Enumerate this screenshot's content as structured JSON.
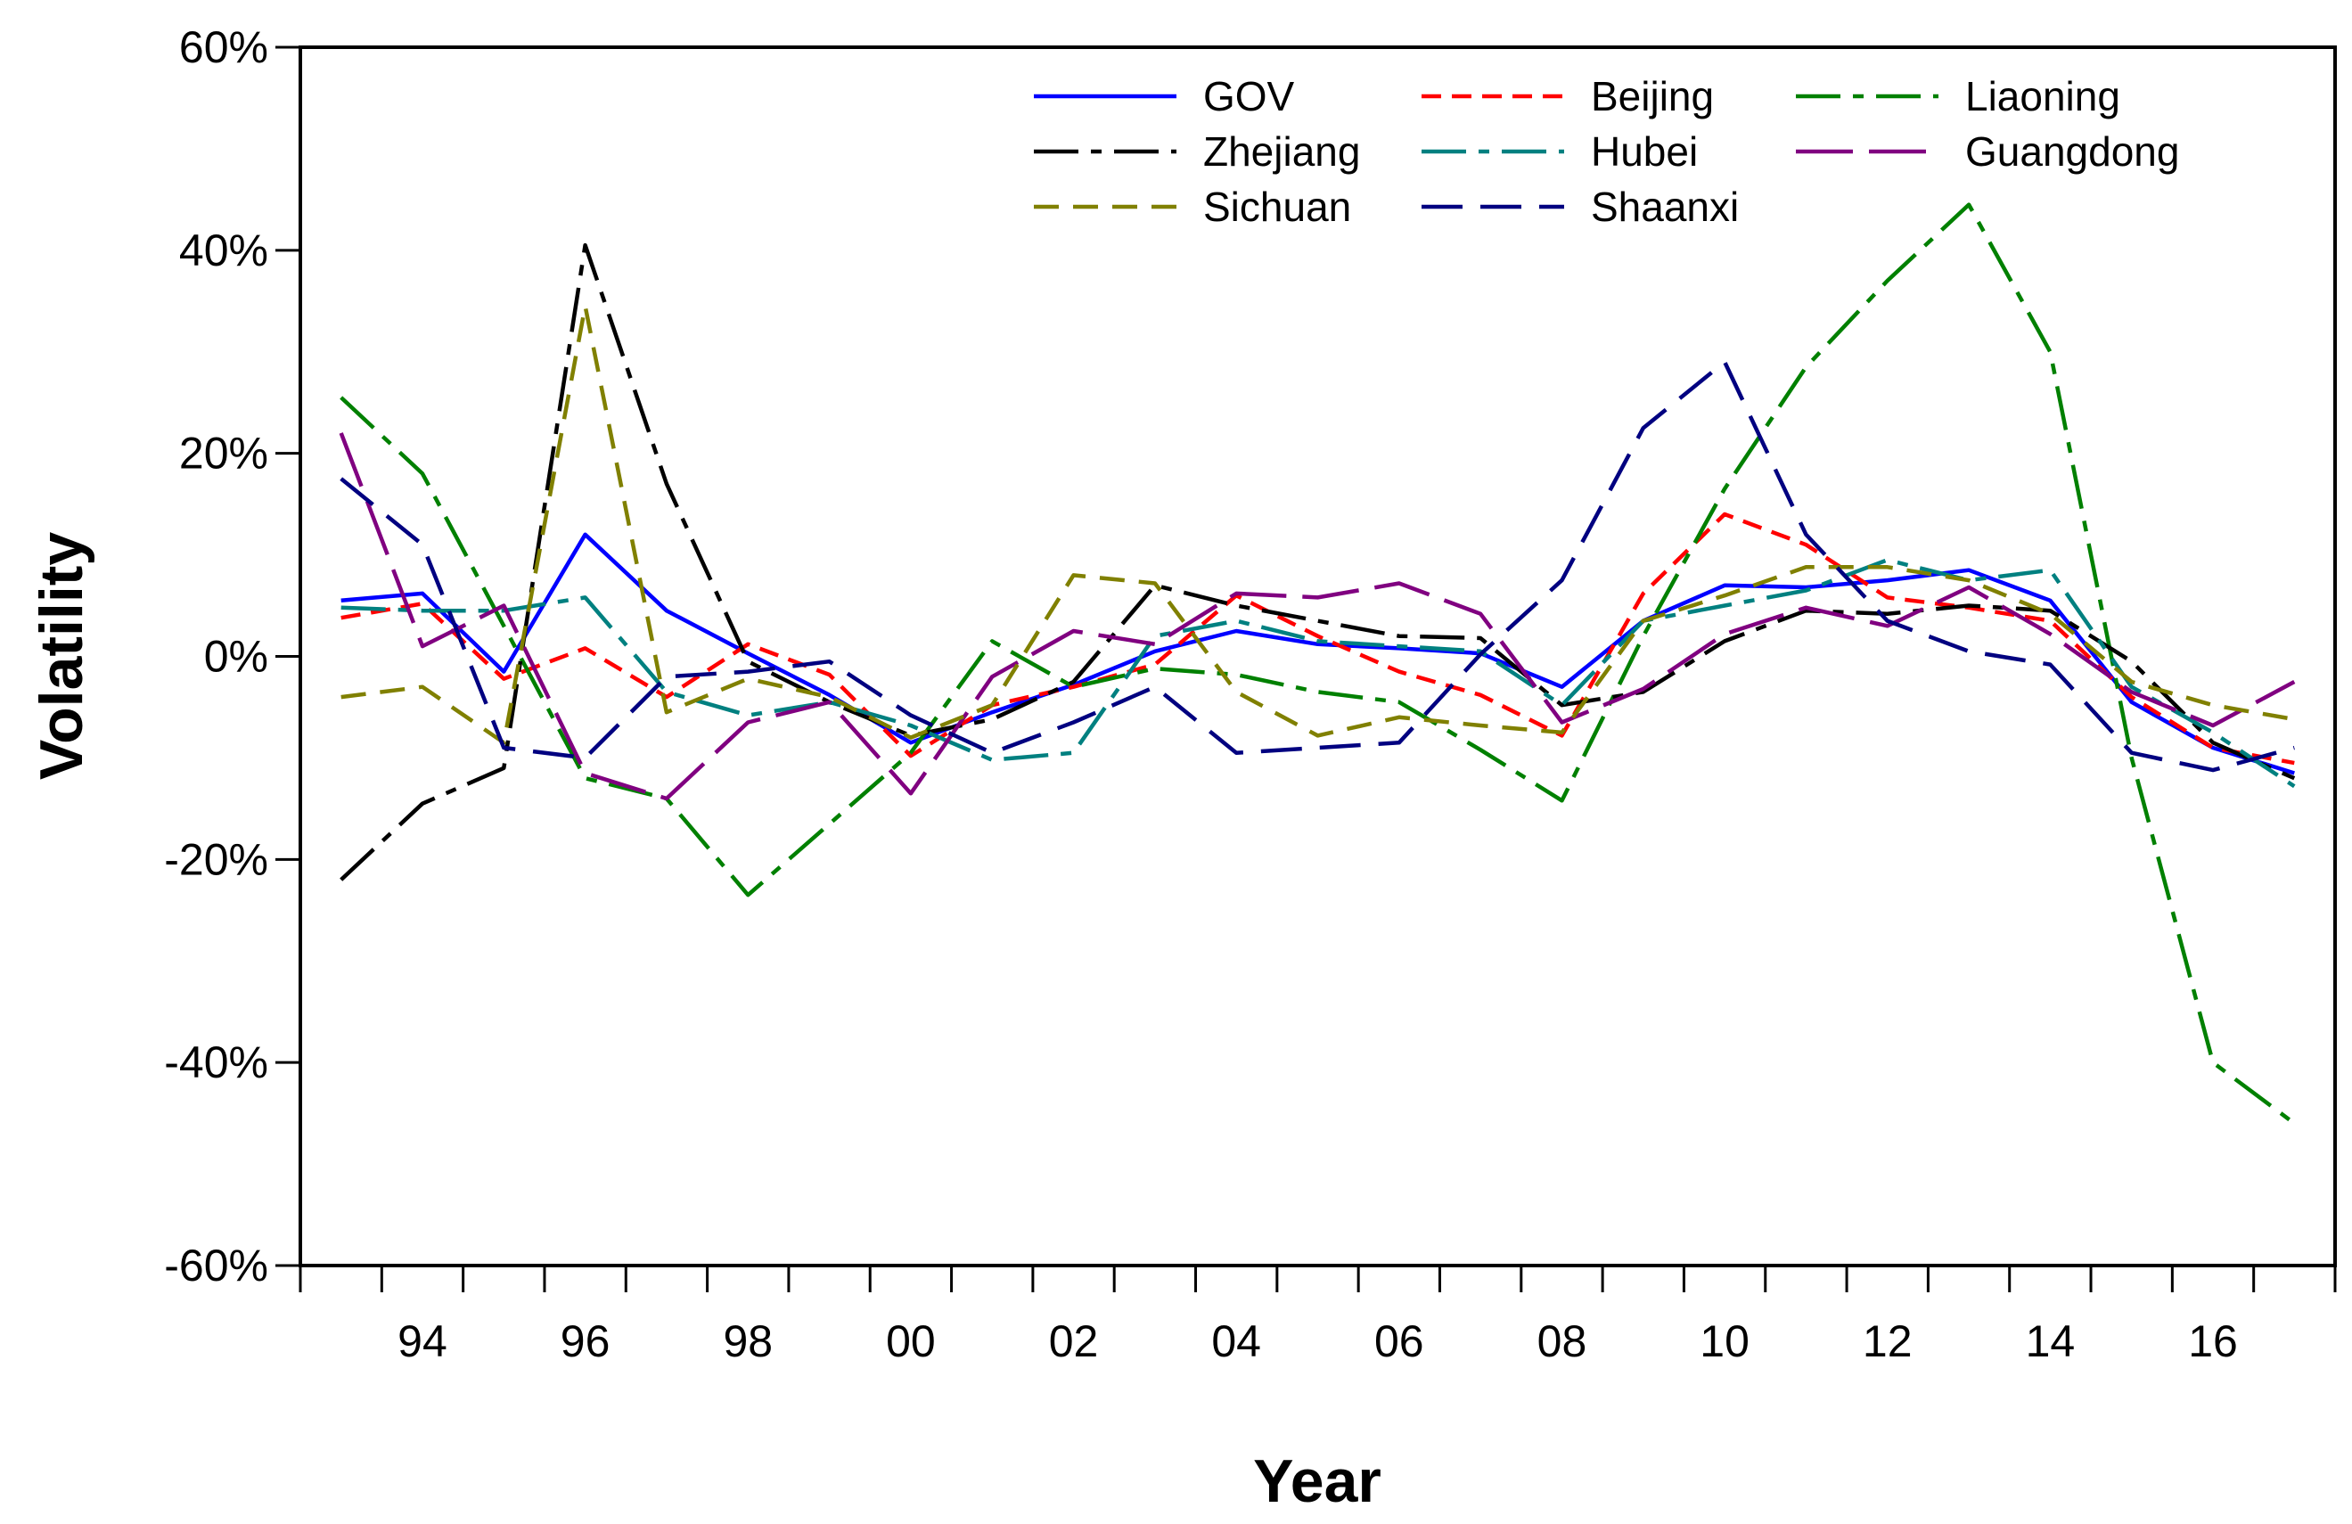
{
  "chart_data": {
    "type": "line",
    "title": "",
    "xlabel": "Year",
    "ylabel": "Volatility",
    "xlim": [
      1992.5,
      2017.5
    ],
    "ylim": [
      -0.6,
      0.6
    ],
    "y_ticks": [
      -0.6,
      -0.4,
      -0.2,
      0,
      0.2,
      0.4,
      0.6
    ],
    "y_tick_labels": [
      "-60%",
      "-40%",
      "-20%",
      "0%",
      "20%",
      "40%",
      "60%"
    ],
    "x_tick_positions": [
      1994,
      1996,
      1998,
      2000,
      2002,
      2004,
      2006,
      2008,
      2010,
      2012,
      2014,
      2016
    ],
    "x_tick_labels": [
      "94",
      "96",
      "98",
      "00",
      "02",
      "04",
      "06",
      "08",
      "10",
      "12",
      "14",
      "16"
    ],
    "grid": false,
    "legend_position": "top-right",
    "x": [
      1993,
      1994,
      1995,
      1996,
      1997,
      1998,
      1999,
      2000,
      2001,
      2002,
      2003,
      2004,
      2005,
      2006,
      2007,
      2008,
      2009,
      2010,
      2011,
      2012,
      2013,
      2014,
      2015,
      2016,
      2017
    ],
    "series": [
      {
        "name": "GOV",
        "color": "#0000ff",
        "dash": "solid",
        "values": [
          0.055,
          0.062,
          -0.015,
          0.12,
          0.045,
          0.003,
          -0.038,
          -0.085,
          -0.055,
          -0.028,
          0.005,
          0.025,
          0.012,
          0.008,
          0.003,
          -0.03,
          0.035,
          0.07,
          0.068,
          0.075,
          0.085,
          0.055,
          -0.045,
          -0.09,
          -0.115
        ]
      },
      {
        "name": "Beijing",
        "color": "#ff0000",
        "dash": "short",
        "values": [
          0.038,
          0.052,
          -0.022,
          0.008,
          -0.04,
          0.012,
          -0.018,
          -0.098,
          -0.048,
          -0.03,
          -0.008,
          0.06,
          0.02,
          -0.015,
          -0.038,
          -0.078,
          0.062,
          0.14,
          0.11,
          0.058,
          0.048,
          0.035,
          -0.04,
          -0.09,
          -0.105
        ]
      },
      {
        "name": "Liaoning",
        "color": "#008000",
        "dash": "dashdot",
        "values": [
          0.255,
          0.18,
          0.03,
          -0.12,
          -0.14,
          -0.235,
          -0.165,
          -0.095,
          0.015,
          -0.03,
          -0.012,
          -0.018,
          -0.035,
          -0.045,
          -0.092,
          -0.142,
          0.02,
          0.165,
          0.285,
          0.37,
          0.445,
          0.3,
          -0.1,
          -0.4,
          -0.46
        ]
      },
      {
        "name": "Zhejiang",
        "color": "#000000",
        "dash": "dashdot",
        "values": [
          -0.22,
          -0.145,
          -0.11,
          0.405,
          0.17,
          -0.005,
          -0.045,
          -0.078,
          -0.062,
          -0.025,
          0.07,
          0.05,
          0.035,
          0.02,
          0.018,
          -0.048,
          -0.035,
          0.015,
          0.045,
          0.042,
          0.05,
          0.045,
          -0.005,
          -0.085,
          -0.12
        ]
      },
      {
        "name": "Hubei",
        "color": "#008080",
        "dash": "dashdot",
        "values": [
          0.048,
          0.045,
          0.045,
          0.058,
          -0.035,
          -0.058,
          -0.045,
          -0.068,
          -0.102,
          -0.095,
          0.02,
          0.035,
          0.015,
          0.01,
          0.005,
          -0.048,
          0.035,
          0.05,
          0.065,
          0.095,
          0.075,
          0.085,
          -0.03,
          -0.075,
          -0.128
        ]
      },
      {
        "name": "Guangdong",
        "color": "#800080",
        "dash": "longdash",
        "values": [
          0.22,
          0.01,
          0.05,
          -0.115,
          -0.14,
          -0.065,
          -0.045,
          -0.135,
          -0.02,
          0.025,
          0.012,
          0.062,
          0.058,
          0.072,
          0.042,
          -0.065,
          -0.032,
          0.022,
          0.048,
          0.03,
          0.068,
          0.022,
          -0.035,
          -0.068,
          -0.025
        ]
      },
      {
        "name": "Sichuan",
        "color": "#808000",
        "dash": "medium",
        "values": [
          -0.04,
          -0.03,
          -0.085,
          0.345,
          -0.055,
          -0.022,
          -0.04,
          -0.08,
          -0.048,
          0.08,
          0.072,
          -0.035,
          -0.078,
          -0.06,
          -0.068,
          -0.075,
          0.035,
          0.06,
          0.088,
          0.088,
          0.075,
          0.042,
          -0.025,
          -0.048,
          -0.062
        ]
      },
      {
        "name": "Shaanxi",
        "color": "#000080",
        "dash": "long",
        "values": [
          0.175,
          0.11,
          -0.09,
          -0.1,
          -0.02,
          -0.015,
          -0.005,
          -0.058,
          -0.095,
          -0.065,
          -0.03,
          -0.095,
          -0.09,
          -0.085,
          0.002,
          0.075,
          0.225,
          0.29,
          0.12,
          0.035,
          0.005,
          -0.008,
          -0.095,
          -0.112,
          -0.09
        ]
      }
    ]
  }
}
